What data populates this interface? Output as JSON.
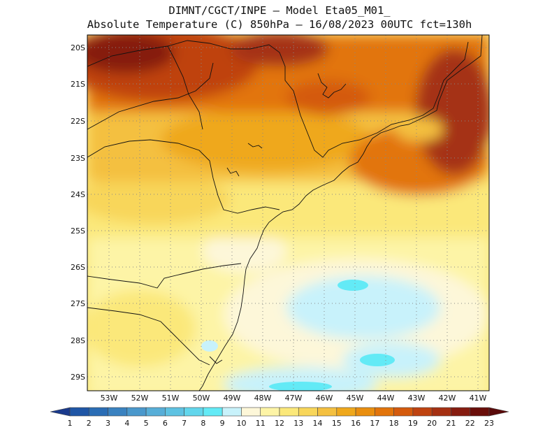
{
  "title": {
    "line1": "DIMNT/CGCT/INPE –  Model Eta05_M01_",
    "line2": "Absolute Temperature (C) 850hPa –  16/08/2023 00UTC fct=130h"
  },
  "axes": {
    "lat_labels": [
      "20S",
      "21S",
      "22S",
      "23S",
      "24S",
      "25S",
      "26S",
      "27S",
      "28S",
      "29S"
    ],
    "lon_labels": [
      "53W",
      "52W",
      "51W",
      "50W",
      "49W",
      "48W",
      "47W",
      "46W",
      "45W",
      "44W",
      "43W",
      "42W",
      "41W"
    ]
  },
  "colorbar": {
    "labels": [
      "1",
      "2",
      "3",
      "4",
      "5",
      "6",
      "7",
      "8",
      "9",
      "10",
      "11",
      "12",
      "13",
      "14",
      "15",
      "16",
      "17",
      "18",
      "19",
      "20",
      "21",
      "22",
      "23"
    ],
    "colors": [
      "#1a3a8c",
      "#1f56a6",
      "#2a6db5",
      "#3a82c0",
      "#4a98cc",
      "#57aed8",
      "#5ec2e2",
      "#62d6ec",
      "#63eaf6",
      "#c8f2fb",
      "#fdf7d9",
      "#fdf4a6",
      "#fbe87a",
      "#f8d65a",
      "#f4c040",
      "#efa81c",
      "#e98e0f",
      "#e2740b",
      "#d45a0d",
      "#bf4310",
      "#a53012",
      "#861c10",
      "#6a0e0a",
      "#5a0a0a"
    ]
  },
  "chart_data": {
    "type": "heatmap",
    "variable": "Absolute Temperature (C) 850hPa",
    "model": "Eta05_M01_",
    "run": "16/08/2023 00UTC",
    "forecast": "fct=130h",
    "lon_range": [
      -53.7,
      -40.6
    ],
    "lat_range": [
      -29.4,
      -19.7
    ],
    "levels": [
      1,
      2,
      3,
      4,
      5,
      6,
      7,
      8,
      9,
      10,
      11,
      12,
      13,
      14,
      15,
      16,
      17,
      18,
      19,
      20,
      21,
      22,
      23
    ],
    "approx_regions": [
      {
        "region": "northwest (20S-21S, 53W-50W)",
        "value": 21
      },
      {
        "region": "north central (20S, 48W-46W)",
        "value": 20
      },
      {
        "region": "east coast (21S-23S, 43W-41W)",
        "value": 20
      },
      {
        "region": "central (22S-23S, 50W-47W)",
        "value": 16
      },
      {
        "region": "mid (24S-25S, 52W-46W)",
        "value": 13
      },
      {
        "region": "south (26S-29S, 53W-49W)",
        "value": 12
      },
      {
        "region": "offshore (26S-29S, 47W-43W)",
        "value": 10
      }
    ]
  }
}
